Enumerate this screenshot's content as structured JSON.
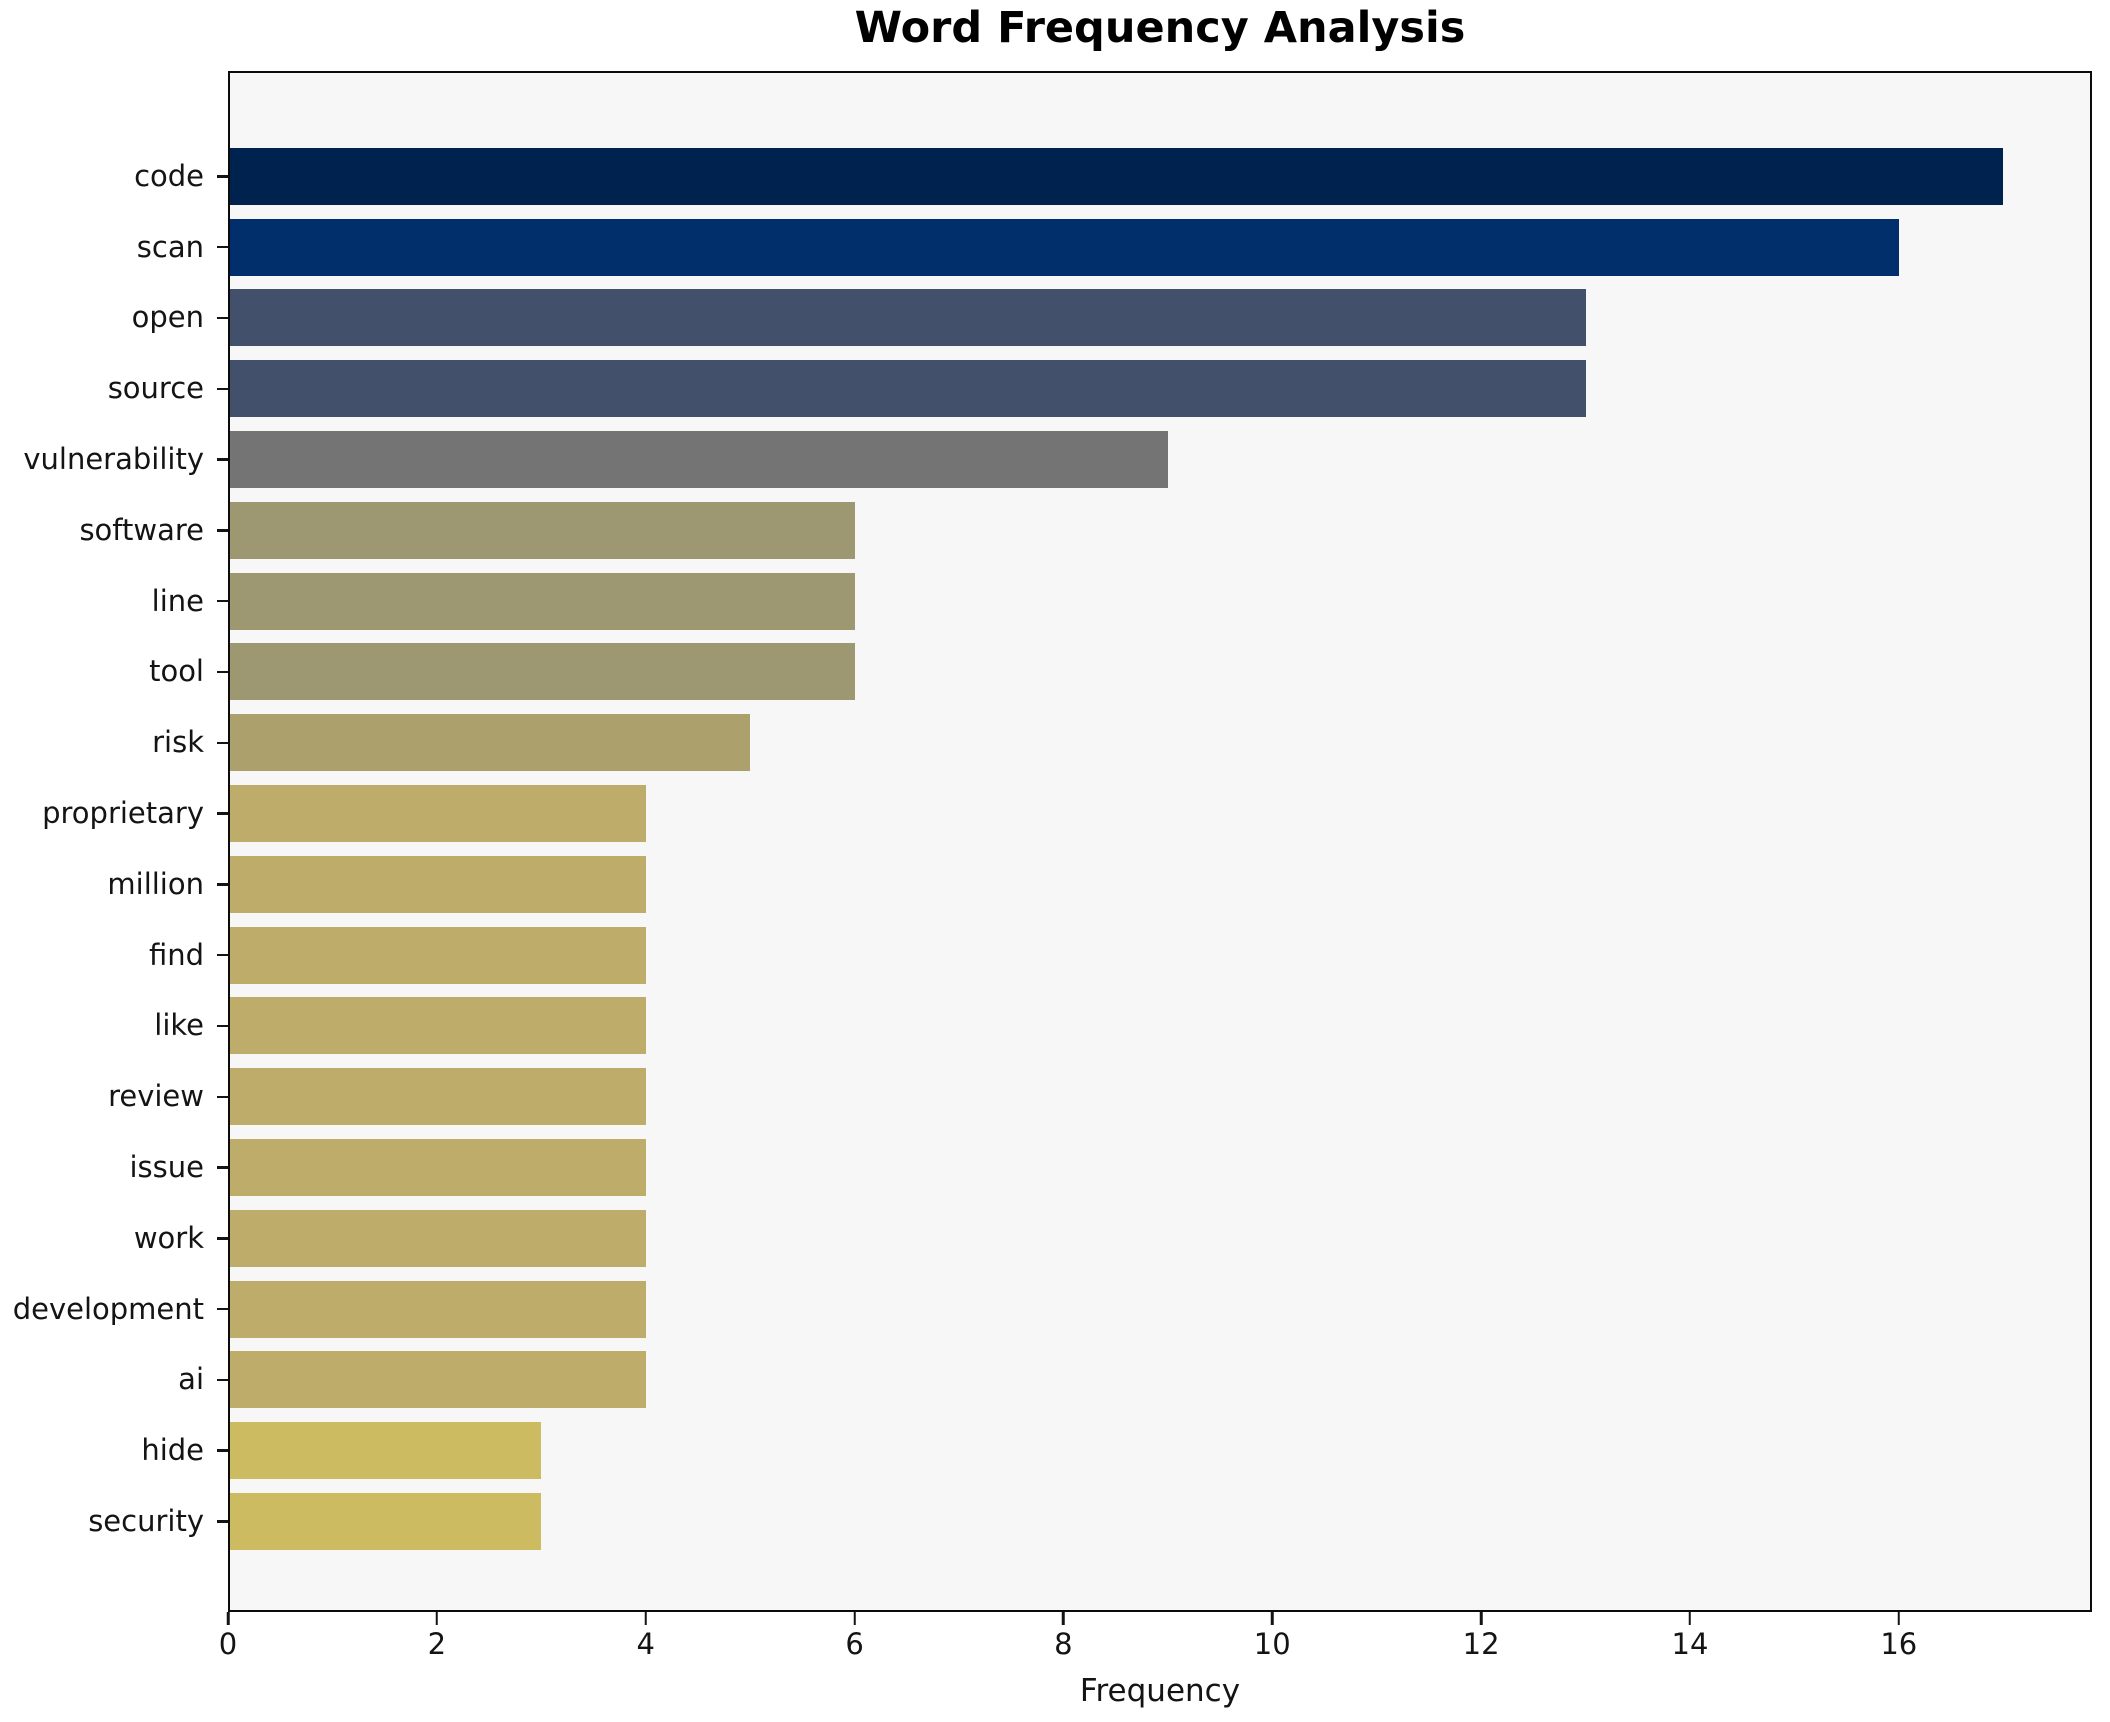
{
  "title": "Word Frequency Analysis",
  "xlabel": "Frequency",
  "colors": {
    "figure_background": "#ffffff",
    "plot_background": "#f7f7f7",
    "axis_and_text": "#141414",
    "frame": "#0b0b0b"
  },
  "chart_data": {
    "type": "bar",
    "orientation": "horizontal",
    "title": "Word Frequency Analysis",
    "xlabel": "Frequency",
    "ylabel": "",
    "categories": [
      "code",
      "scan",
      "open",
      "source",
      "vulnerability",
      "software",
      "line",
      "tool",
      "risk",
      "proprietary",
      "million",
      "find",
      "like",
      "review",
      "issue",
      "work",
      "development",
      "ai",
      "hide",
      "security"
    ],
    "values": [
      17,
      16,
      13,
      13,
      9,
      6,
      6,
      6,
      5,
      4,
      4,
      4,
      4,
      4,
      4,
      4,
      4,
      4,
      3,
      3
    ],
    "bar_colors": [
      "#00224e",
      "#002f6b",
      "#42506c",
      "#42506c",
      "#757474",
      "#9d9872",
      "#9d9872",
      "#9d9872",
      "#aca06c",
      "#bdac6a",
      "#bdac6a",
      "#bdac6a",
      "#bdac6a",
      "#bdac6a",
      "#bdac6a",
      "#bdac6a",
      "#bdac6a",
      "#bdac6a",
      "#cdbb61",
      "#cdbb61"
    ],
    "xlim": [
      0,
      17.85
    ],
    "x_ticks": [
      0,
      2,
      4,
      6,
      8,
      10,
      12,
      14,
      16
    ],
    "grid": false,
    "legend": null,
    "colormap_note": "cividis-style gradient: dark navy for high frequency to gold for low frequency"
  }
}
